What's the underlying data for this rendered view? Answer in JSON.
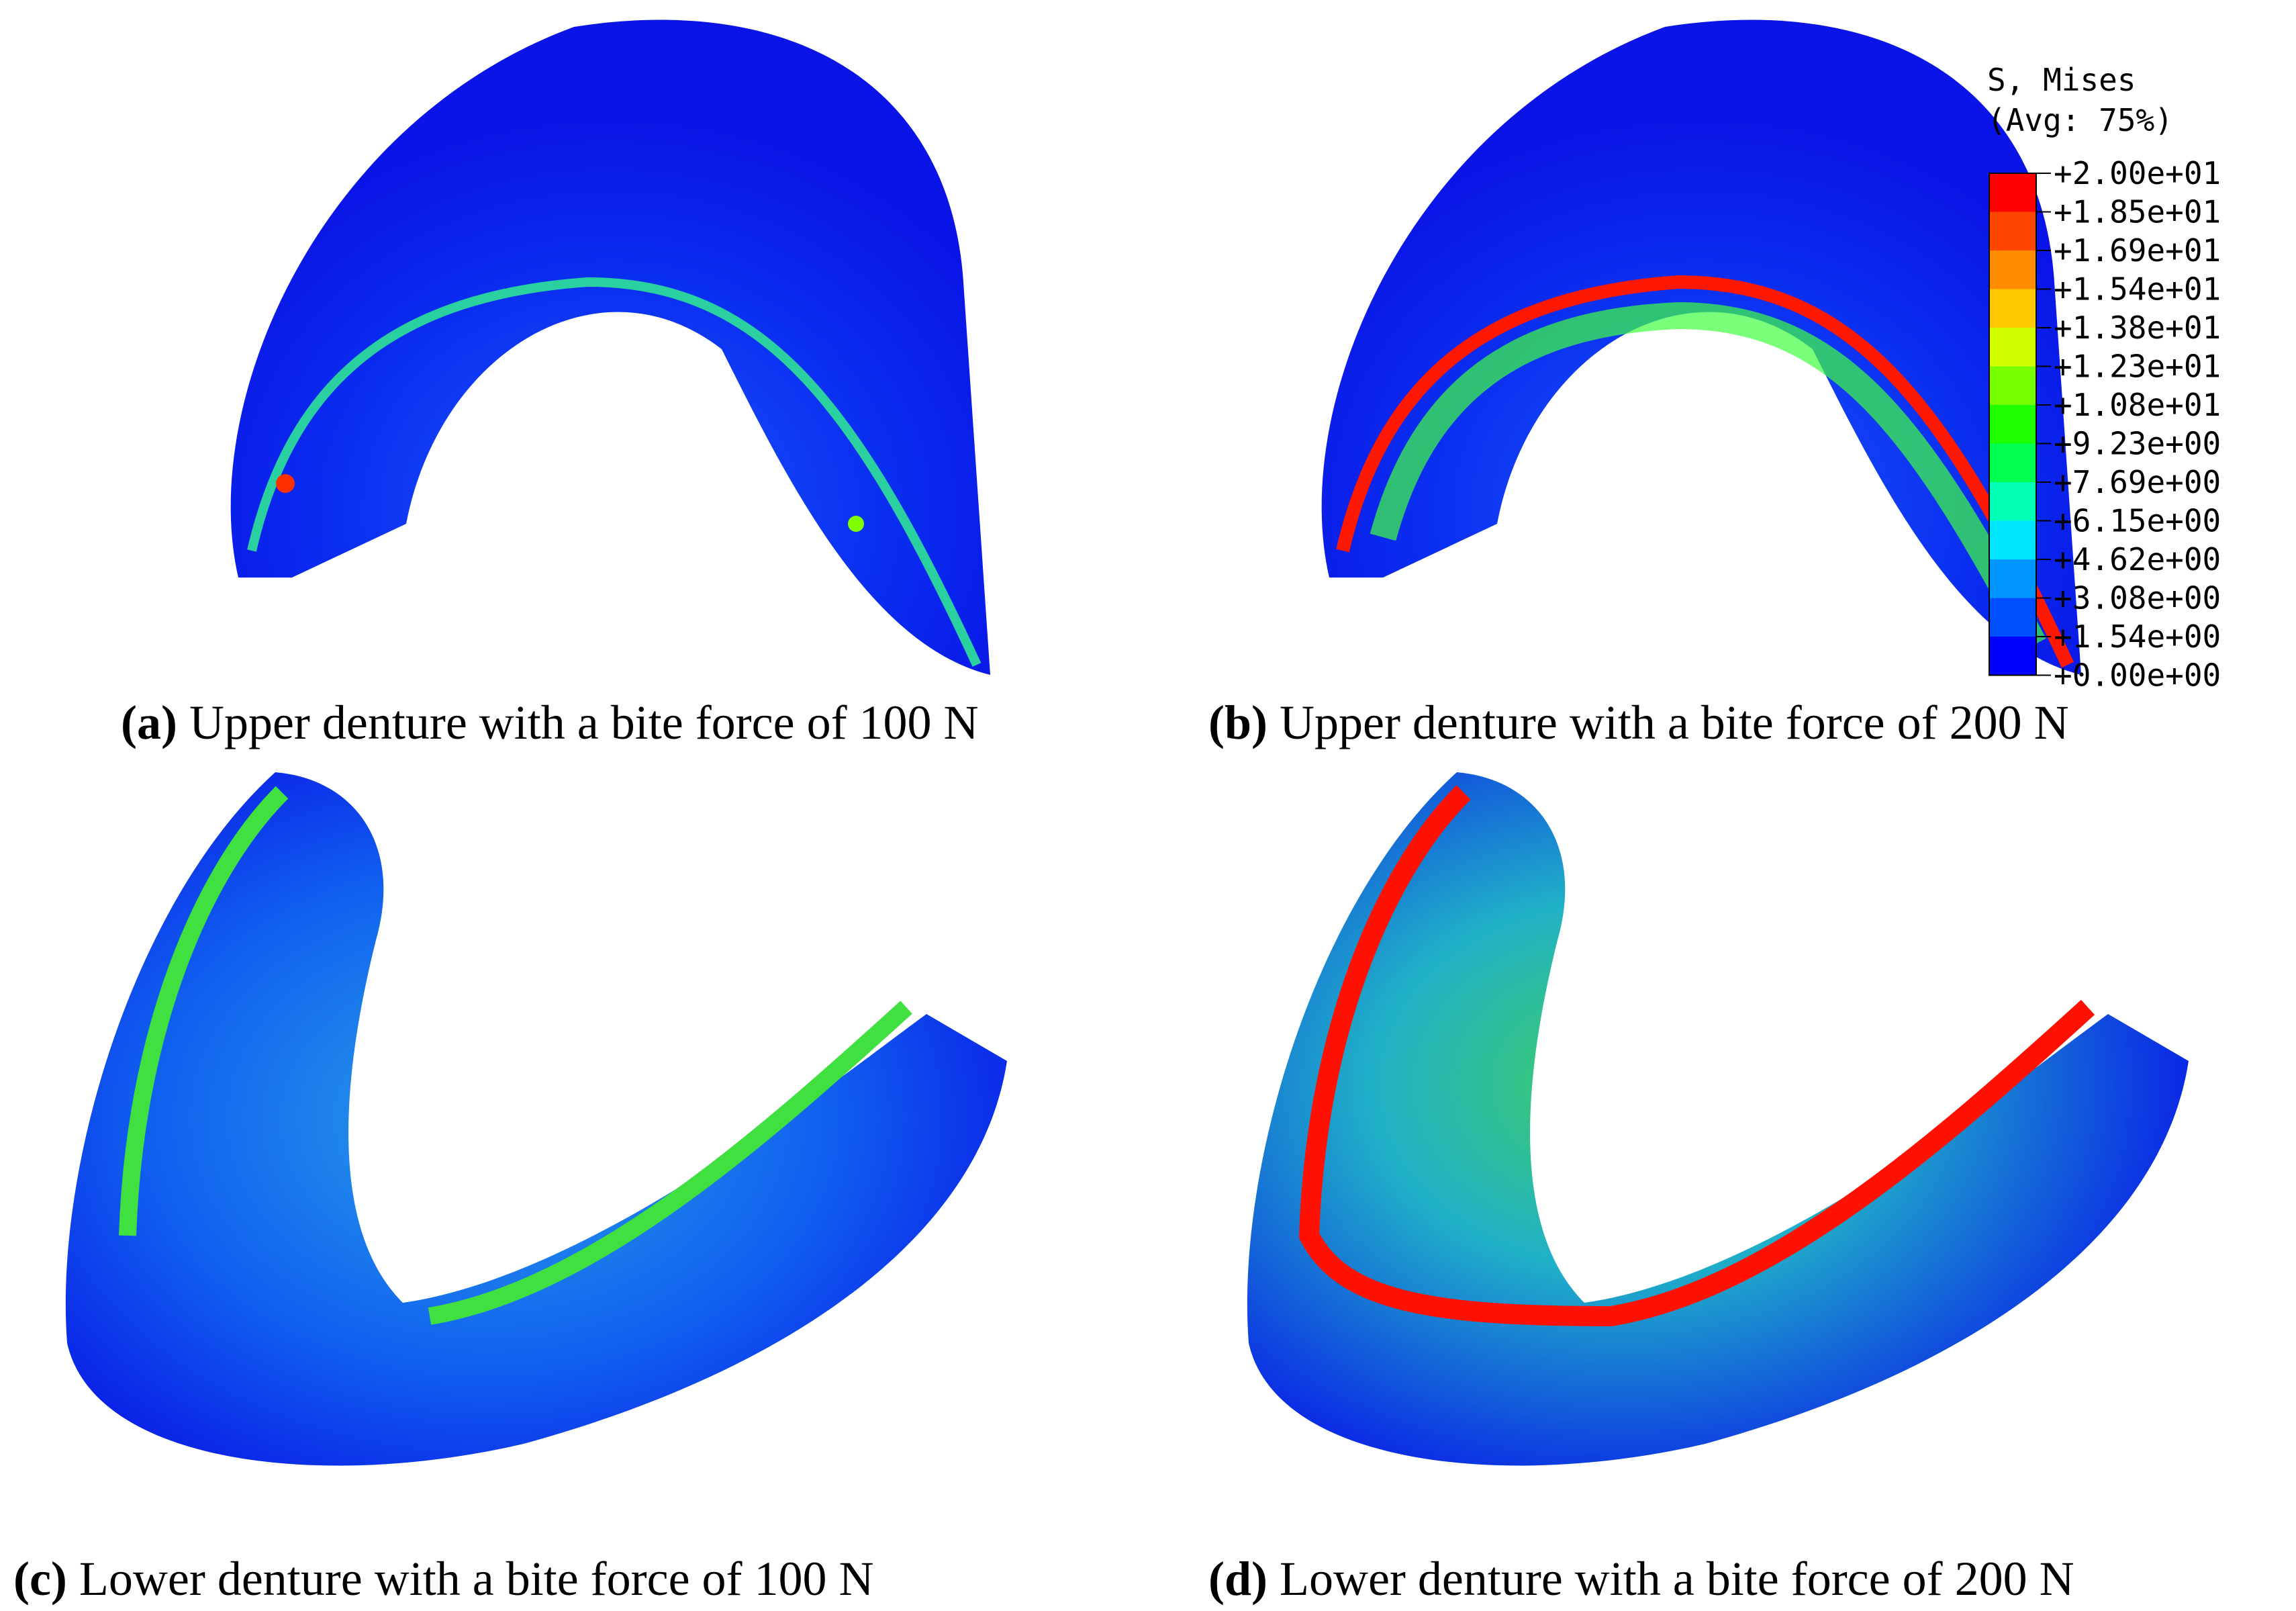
{
  "panels": [
    {
      "label": "(a)",
      "caption": "Upper denture with a bite force of 100 N"
    },
    {
      "label": "(b)",
      "caption": "Upper denture with a bite force of 200 N"
    },
    {
      "label": "(c)",
      "caption": "Lower denture with a bite force of 100 N"
    },
    {
      "label": "(d)",
      "caption": "Lower denture with a bite force of 200 N"
    }
  ],
  "legend": {
    "title": "S, Mises",
    "subtitle": "(Avg: 75%)",
    "ticks": [
      "+2.00e+01",
      "+1.85e+01",
      "+1.69e+01",
      "+1.54e+01",
      "+1.38e+01",
      "+1.23e+01",
      "+1.08e+01",
      "+9.23e+00",
      "+7.69e+00",
      "+6.15e+00",
      "+4.62e+00",
      "+3.08e+00",
      "+1.54e+00",
      "+0.00e+00"
    ],
    "colors": [
      "#ff0000",
      "#ff4600",
      "#ff8c00",
      "#ffc800",
      "#d2ff00",
      "#78ff00",
      "#1eff00",
      "#00ff50",
      "#00ffb4",
      "#00e6ff",
      "#0096ff",
      "#0050ff",
      "#0000ff"
    ]
  }
}
